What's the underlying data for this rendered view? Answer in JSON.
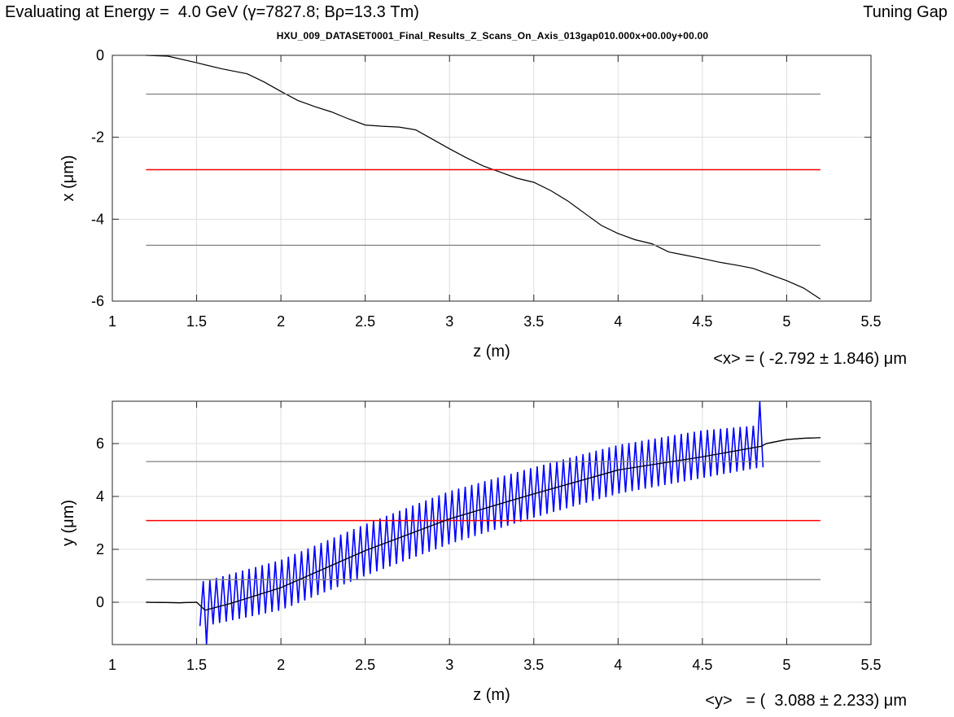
{
  "header": {
    "title": "Evaluating at Energy =  4.0 GeV (γ=7827.8; Bρ=13.3 Tm)",
    "right_label": "Tuning Gap",
    "subtitle": "HXU_009_DATASET0001_Final_Results_Z_Scans_On_Axis_013gap010.000x+00.00y+00.00"
  },
  "stats": {
    "x_mean": "<x> = ( -2.792 ± 1.846) μm",
    "y_mean": "<y>   = (  3.088 ± 2.233) μm"
  },
  "colors": {
    "trace": "#000000",
    "mean_line": "#ff0000",
    "sigma_lines": "#808080",
    "oscillation": "#0000ff",
    "grid": "#dedede"
  },
  "chart_data": [
    {
      "type": "line",
      "xlabel": "z (m)",
      "ylabel": "x (μm)",
      "xlim": [
        1,
        5.5
      ],
      "ylim": [
        -6,
        0
      ],
      "xticks": [
        1,
        1.5,
        2,
        2.5,
        3,
        3.5,
        4,
        4.5,
        5,
        5.5
      ],
      "yticks": [
        -6,
        -4,
        -2,
        0
      ],
      "grid": true,
      "series": [
        {
          "role": "trajectory",
          "x": [
            1.2,
            1.33,
            1.5,
            1.65,
            1.8,
            1.9,
            2.0,
            2.1,
            2.2,
            2.3,
            2.4,
            2.5,
            2.6,
            2.7,
            2.8,
            2.9,
            3.0,
            3.1,
            3.2,
            3.3,
            3.4,
            3.5,
            3.6,
            3.7,
            3.8,
            3.9,
            4.0,
            4.1,
            4.2,
            4.3,
            4.4,
            4.5,
            4.6,
            4.7,
            4.8,
            4.9,
            5.0,
            5.1,
            5.2
          ],
          "y": [
            0.0,
            -0.02,
            -0.18,
            -0.33,
            -0.45,
            -0.65,
            -0.88,
            -1.1,
            -1.25,
            -1.38,
            -1.55,
            -1.7,
            -1.73,
            -1.75,
            -1.82,
            -2.05,
            -2.28,
            -2.5,
            -2.7,
            -2.85,
            -3.0,
            -3.1,
            -3.3,
            -3.55,
            -3.85,
            -4.15,
            -4.35,
            -4.5,
            -4.6,
            -4.8,
            -4.88,
            -4.96,
            -5.05,
            -5.12,
            -5.2,
            -5.35,
            -5.5,
            -5.68,
            -5.95
          ]
        },
        {
          "role": "mean",
          "x": [
            1.2,
            5.2
          ],
          "y": [
            -2.792,
            -2.792
          ]
        },
        {
          "role": "mean+sigma",
          "x": [
            1.2,
            5.2
          ],
          "y": [
            -0.946,
            -0.946
          ]
        },
        {
          "role": "mean-sigma",
          "x": [
            1.2,
            5.2
          ],
          "y": [
            -4.638,
            -4.638
          ]
        }
      ]
    },
    {
      "type": "line",
      "xlabel": "z (m)",
      "ylabel": "y  (μm)",
      "xlim": [
        1,
        5.5
      ],
      "ylim": [
        -1.6,
        7.6
      ],
      "xticks": [
        1,
        1.5,
        2,
        2.5,
        3,
        3.5,
        4,
        4.5,
        5,
        5.5
      ],
      "yticks": [
        0,
        2,
        4,
        6
      ],
      "grid": true,
      "series": [
        {
          "role": "trajectory",
          "x": [
            1.2,
            1.4,
            1.5,
            1.55,
            1.7,
            2.0,
            2.5,
            3.0,
            3.5,
            4.0,
            4.5,
            4.85,
            4.88,
            5.0,
            5.1,
            5.2
          ],
          "y": [
            0.0,
            -0.02,
            0.0,
            -0.3,
            -0.05,
            0.55,
            1.95,
            3.15,
            4.1,
            5.0,
            5.5,
            5.9,
            6.0,
            6.15,
            6.2,
            6.22
          ]
        },
        {
          "role": "oscillation",
          "z_range": [
            1.52,
            4.86
          ],
          "cycles": 86,
          "envelope_lower": {
            "z": [
              1.55,
              2.0,
              2.5,
              3.0,
              3.5,
              4.0,
              4.5,
              4.85
            ],
            "y": [
              -0.9,
              -0.3,
              1.0,
              2.2,
              3.2,
              4.1,
              4.7,
              5.1
            ]
          },
          "envelope_upper": {
            "z": [
              1.55,
              2.0,
              2.5,
              3.0,
              3.5,
              4.0,
              4.5,
              4.85
            ],
            "y": [
              0.8,
              1.6,
              2.95,
              4.2,
              5.1,
              5.95,
              6.5,
              6.7
            ]
          },
          "spike_max": 7.6,
          "spike_min": -1.6
        },
        {
          "role": "mean",
          "x": [
            1.2,
            5.2
          ],
          "y": [
            3.088,
            3.088
          ]
        },
        {
          "role": "mean+sigma",
          "x": [
            1.2,
            5.2
          ],
          "y": [
            5.321,
            5.321
          ]
        },
        {
          "role": "mean-sigma",
          "x": [
            1.2,
            5.2
          ],
          "y": [
            0.855,
            0.855
          ]
        }
      ]
    }
  ]
}
